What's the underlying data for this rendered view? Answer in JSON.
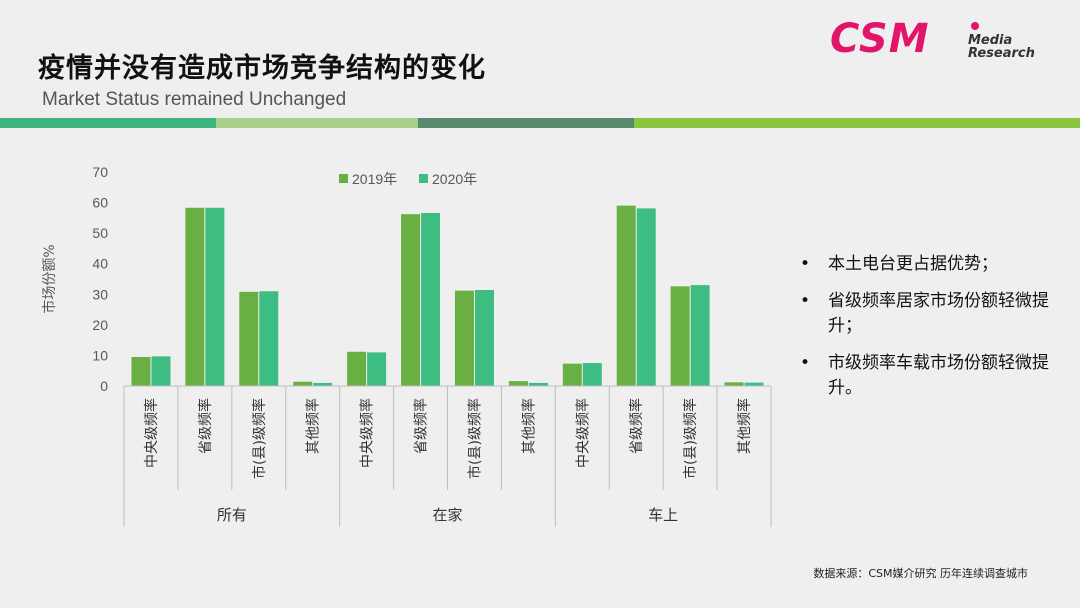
{
  "header": {
    "title": "疫情并没有造成市场竞争结构的变化",
    "subtitle": "Market Status remained Unchanged"
  },
  "logo": {
    "main": "CSM",
    "line1": "Media",
    "line2": "Research"
  },
  "band_colors": [
    "#3db37e",
    "#a8cf8a",
    "#5a8a6e",
    "#8cc63f"
  ],
  "colors": {
    "series_2019": "#6aaf44",
    "series_2020": "#3dbd82",
    "axis": "#bfbfbf",
    "text": "#595959"
  },
  "chart_data": {
    "type": "bar",
    "title": "",
    "ylabel": "市场份额%",
    "ylim": [
      0,
      70
    ],
    "yticks": [
      0,
      10,
      20,
      30,
      40,
      50,
      60,
      70
    ],
    "gridlines": false,
    "legend_position": "top-center",
    "groups": [
      "所有",
      "在家",
      "车上"
    ],
    "categories": [
      "中央级频率",
      "省级频率",
      "市(县)级频率",
      "其他频率"
    ],
    "series": [
      {
        "name": "2019年",
        "values": [
          [
            9.5,
            58.3,
            30.8,
            1.4
          ],
          [
            11.2,
            56.2,
            31.2,
            1.6
          ],
          [
            7.3,
            59.0,
            32.6,
            1.2
          ]
        ]
      },
      {
        "name": "2020年",
        "values": [
          [
            9.7,
            58.3,
            31.0,
            1.0
          ],
          [
            11.0,
            56.6,
            31.4,
            1.0
          ],
          [
            7.5,
            58.1,
            33.0,
            1.1
          ]
        ]
      }
    ]
  },
  "bullets": [
    "本土电台更占据优势；",
    "省级频率居家市场份额轻微提升；",
    "市级频率车载市场份额轻微提升。"
  ],
  "bullet_marker": "•",
  "footnote": "数据来源：CSM媒介研究  历年连续调查城市"
}
